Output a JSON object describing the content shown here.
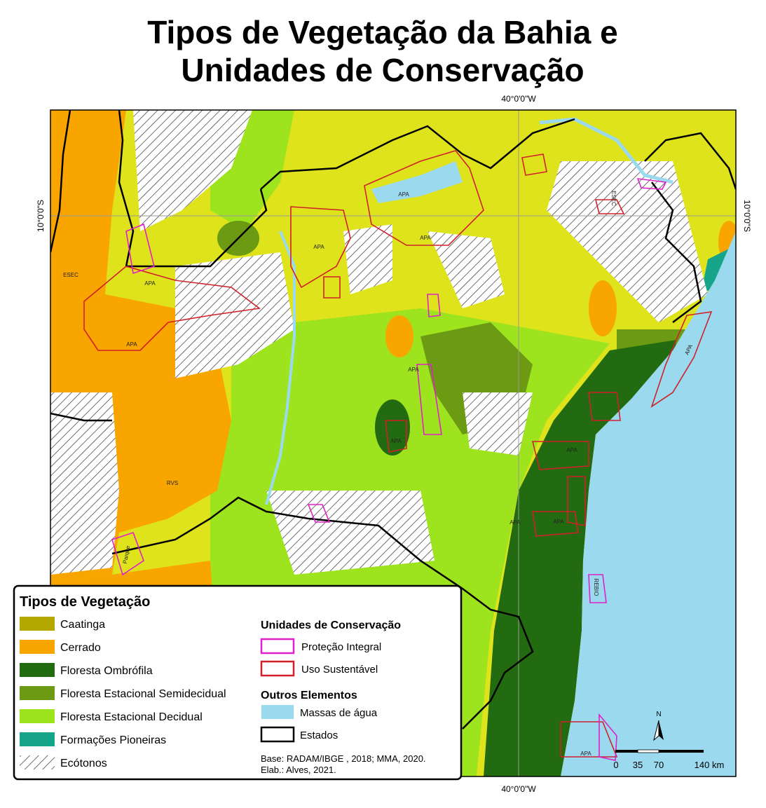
{
  "title": {
    "line1": "Tipos de Vegetação da Bahia e",
    "line2": "Unidades de Conservação"
  },
  "coordinates": {
    "top": "40°0'0\"W",
    "bottom": "40°0'0\"W",
    "left": "10°0'0\"S",
    "right": "10°0'0\"S"
  },
  "map_labels": [
    "APA",
    "APA",
    "APA",
    "APA",
    "APA",
    "APA",
    "APA",
    "APA",
    "APA",
    "APA",
    "APA",
    "APA",
    "ESEC",
    "ESEC",
    "RVS",
    "Parque",
    "REBIO"
  ],
  "legend": {
    "vegetation": {
      "title": "Tipos de Vegetação",
      "items": [
        {
          "name": "Caatinga",
          "color": "#b3a800"
        },
        {
          "name": "Cerrado",
          "color": "#f8a500"
        },
        {
          "name": "Floresta Ombrófila",
          "color": "#236b10"
        },
        {
          "name": "Floresta Estacional Semidecidual",
          "color": "#6c9a12"
        },
        {
          "name": "Floresta Estacional Decidual",
          "color": "#9ee41e"
        },
        {
          "name": "Formações Pioneiras",
          "color": "#17a58a"
        },
        {
          "name": "Ecótonos",
          "hatch": true
        }
      ]
    },
    "conservation": {
      "title": "Unidades de Conservação",
      "items": [
        {
          "name": "Proteção Integral",
          "color": "#e020c8"
        },
        {
          "name": "Uso Sustentável",
          "color": "#d0202a"
        }
      ]
    },
    "other": {
      "title": "Outros Elementos",
      "items": [
        {
          "name": "Massas de água",
          "color": "#9bd9ef"
        },
        {
          "name": "Estados",
          "color": "#000000"
        }
      ]
    },
    "source": [
      "Base: RADAM/IBGE , 2018; MMA, 2020.",
      "Elab.: Alves, 2021."
    ]
  },
  "scale": {
    "north": "N",
    "labels": [
      "0",
      "35",
      "70",
      "140 km"
    ]
  }
}
